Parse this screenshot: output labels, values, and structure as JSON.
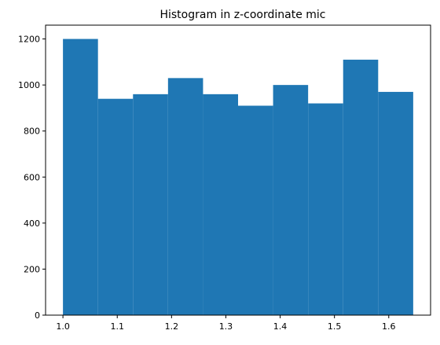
{
  "chart_data": {
    "type": "bar",
    "title": "Histogram in z-coordinate mic",
    "xlabel": "",
    "ylabel": "",
    "bin_edges": [
      1.0,
      1.0645,
      1.129,
      1.1935,
      1.258,
      1.3225,
      1.387,
      1.4515,
      1.516,
      1.5805,
      1.645
    ],
    "values": [
      1200,
      940,
      960,
      1030,
      960,
      910,
      1000,
      920,
      1110,
      970
    ],
    "xlim": [
      0.968,
      1.677
    ],
    "ylim": [
      0,
      1260
    ],
    "xticks": [
      1.0,
      1.1,
      1.2,
      1.3,
      1.4,
      1.5,
      1.6
    ],
    "xtick_labels": [
      "1.0",
      "1.1",
      "1.2",
      "1.3",
      "1.4",
      "1.5",
      "1.6"
    ],
    "yticks": [
      0,
      200,
      400,
      600,
      800,
      1000,
      1200
    ],
    "ytick_labels": [
      "0",
      "200",
      "400",
      "600",
      "800",
      "1000",
      "1200"
    ],
    "bar_color": "#1f77b4",
    "grid": false,
    "legend": false
  }
}
